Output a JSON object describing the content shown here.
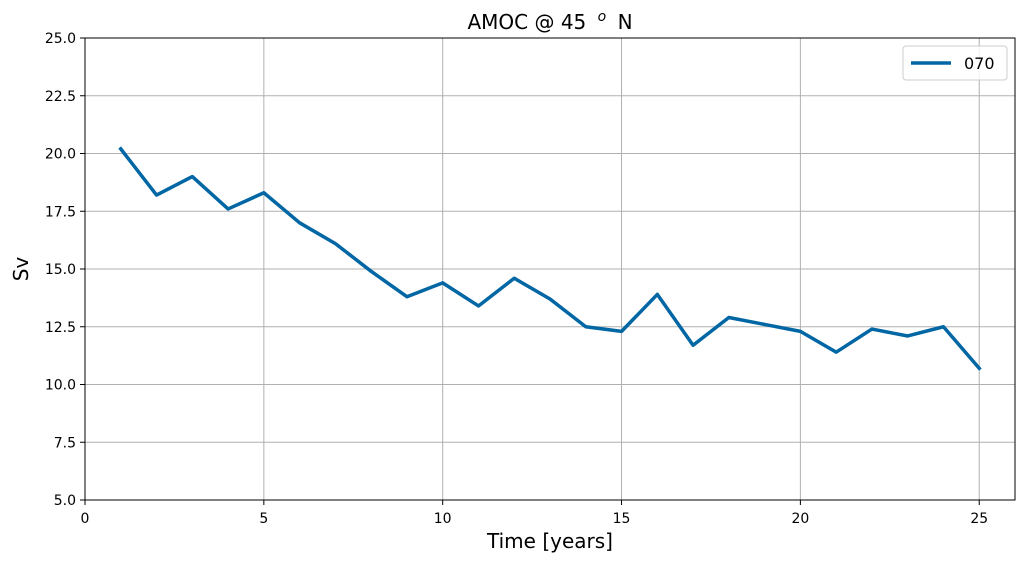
{
  "chart_data": {
    "type": "line",
    "title": {
      "main": "AMOC @ 45",
      "superscript": "o",
      "suffix": "N"
    },
    "xlabel": "Time [years]",
    "ylabel": "Sv",
    "xlim": [
      0,
      26
    ],
    "ylim": [
      5,
      25
    ],
    "xticks": [
      0,
      5,
      10,
      15,
      20,
      25
    ],
    "yticks": [
      5.0,
      7.5,
      10.0,
      12.5,
      15.0,
      17.5,
      20.0,
      22.5,
      25.0
    ],
    "xtick_labels": [
      "0",
      "5",
      "10",
      "15",
      "20",
      "25"
    ],
    "ytick_labels": [
      "5.0",
      "7.5",
      "10.0",
      "12.5",
      "15.0",
      "17.5",
      "20.0",
      "22.5",
      "25.0"
    ],
    "grid": true,
    "legend_position": "top-right",
    "x": [
      1,
      2,
      3,
      4,
      5,
      6,
      7,
      8,
      9,
      10,
      11,
      12,
      13,
      14,
      15,
      16,
      17,
      18,
      19,
      20,
      21,
      22,
      23,
      24,
      25
    ],
    "series": [
      {
        "name": "070",
        "color": "#0066a4",
        "values": [
          20.2,
          18.2,
          19.0,
          17.6,
          18.3,
          17.0,
          16.1,
          14.9,
          13.8,
          14.4,
          13.4,
          14.6,
          13.7,
          12.5,
          12.3,
          13.9,
          11.7,
          12.9,
          12.6,
          12.3,
          11.4,
          12.4,
          12.1,
          12.5,
          10.7
        ]
      }
    ]
  }
}
